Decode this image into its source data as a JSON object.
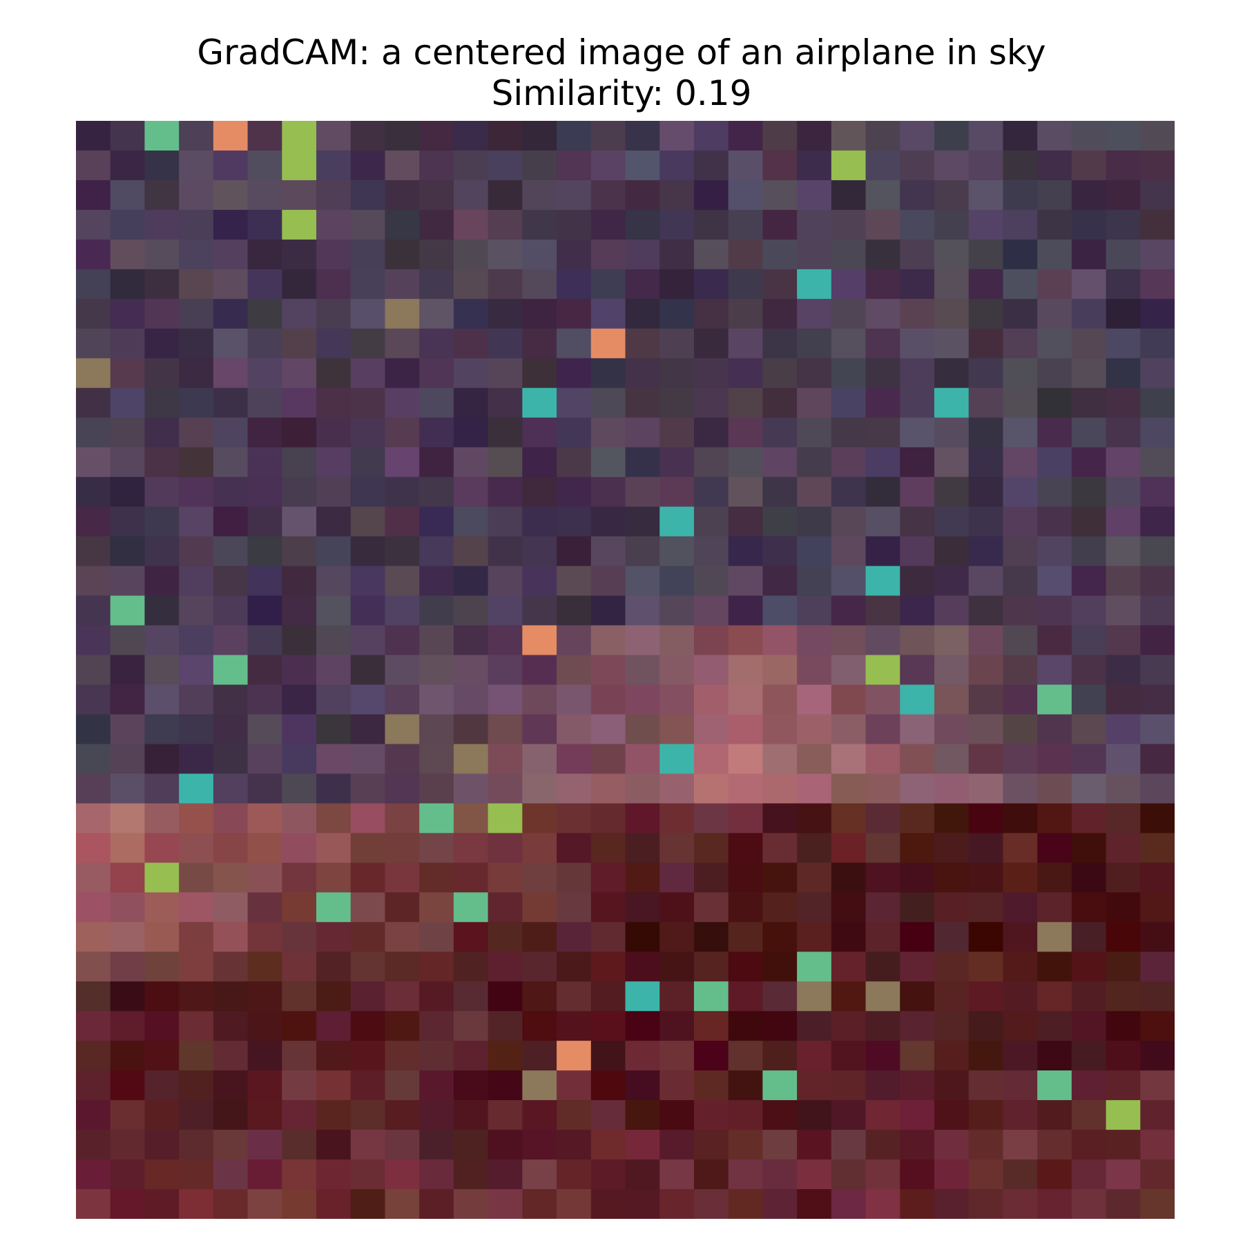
{
  "figure": {
    "title_line1": "GradCAM: a centered image of an airplane in sky",
    "title_line2": "Similarity: 0.19"
  },
  "heatmap": {
    "description_colors": {
      "top_region": "#4a3a52",
      "middle_warm": "#b06d70",
      "bottom_dark": "#5e2328"
    }
  }
}
